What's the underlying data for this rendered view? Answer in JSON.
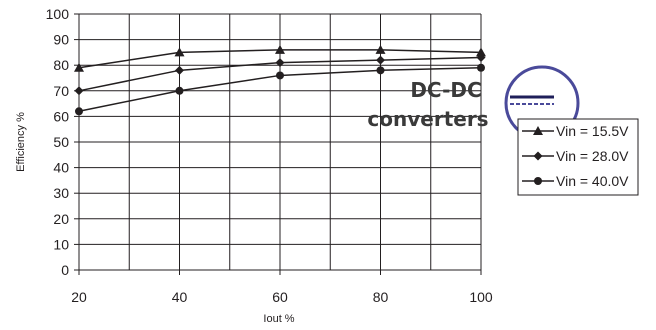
{
  "chart_data": {
    "type": "line",
    "xlabel": "Iout %",
    "ylabel": "Efficiency %",
    "x": [
      20,
      40,
      60,
      80,
      100
    ],
    "xlim": [
      20,
      100
    ],
    "ylim": [
      0,
      100
    ],
    "x_ticks": [
      "20",
      "40",
      "60",
      "80",
      "100"
    ],
    "y_ticks": [
      "0",
      "10",
      "20",
      "30",
      "40",
      "50",
      "60",
      "70",
      "80",
      "90",
      "100"
    ],
    "grid": true,
    "legend_position": "right",
    "series": [
      {
        "name": "Vin = 15.5V",
        "marker": "triangle",
        "values": [
          79,
          85,
          86,
          86,
          85
        ]
      },
      {
        "name": "Vin = 28.0V",
        "marker": "diamond",
        "values": [
          70,
          78,
          81,
          82,
          83
        ]
      },
      {
        "name": "Vin = 40.0V",
        "marker": "circle",
        "values": [
          62,
          70,
          76,
          78,
          79
        ]
      }
    ]
  },
  "badge": {
    "line1": "DC-DC",
    "line2": "converters",
    "ring_color": "#4a4a9a",
    "icon": "dc-symbol-icon"
  },
  "colors": {
    "line": "#231f20",
    "grid": "#231f20"
  }
}
